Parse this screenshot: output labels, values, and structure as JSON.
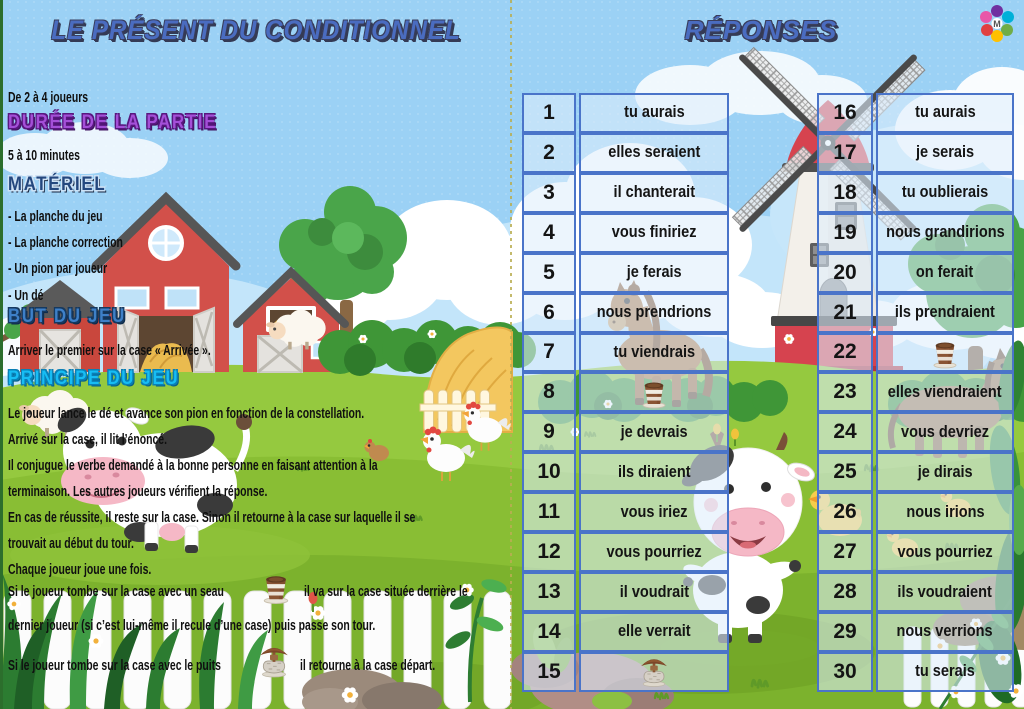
{
  "titles": {
    "left": "LE PRÉSENT DU CONDITIONNEL",
    "right": "RÉPONSES"
  },
  "colors": {
    "title_blue": "#4a6cc0",
    "heading_purple": "#a44fd8",
    "heading_navy": "#24477e",
    "heading_blue": "#3e80c8",
    "heading_cyan": "#17bdf4",
    "table_border": "#4a74c9",
    "sky": "#9bd1f5",
    "grass": "#8cc63e"
  },
  "icons": {
    "bucket": "bucket-icon",
    "well": "well-icon",
    "logo": "brand-logo"
  },
  "instructions": {
    "players": "De 2 à 4 joueurs",
    "duration_heading": "DURÉE DE LA PARTIE",
    "duration": "5 à 10 minutes",
    "material_heading": "MATÉRIEL",
    "materials": [
      "- La planche du jeu",
      "- La planche correction",
      "- Un pion par joueur",
      "- Un dé"
    ],
    "goal_heading": "BUT DU JEU",
    "goal": "Arriver le premier sur la case « Arrivée ».",
    "principle_heading": "PRINCIPE DU JEU",
    "principle_lines": [
      "Le joueur lance le dé et avance son pion en fonction de la constellation.",
      "Arrivé sur la case, il lit l’énoncé.",
      "Il conjugue le verbe demandé à la bonne personne en faisant attention à la",
      "terminaison. Les autres joueurs vérifient la réponse.",
      "En cas de réussite, il reste sur la case. Sinon il retourne à la case sur laquelle il se",
      "trouvait au début du tour.",
      "Chaque joueur joue une fois."
    ],
    "bucket_rule": {
      "before": "Si le joueur tombe sur la case avec un seau",
      "after": "il va sur la case située derrière le",
      "line2": "dernier joueur (si c’est lui-même il recule d’une case) puis passe son tour."
    },
    "well_rule": {
      "before": "Si le joueur tombe sur la case avec le puits",
      "after": "il retourne à la case départ."
    }
  },
  "answers": {
    "left": [
      {
        "n": "1",
        "text": "tu aurais"
      },
      {
        "n": "2",
        "text": "elles seraient"
      },
      {
        "n": "3",
        "text": "il chanterait"
      },
      {
        "n": "4",
        "text": "vous finiriez"
      },
      {
        "n": "5",
        "text": "je ferais"
      },
      {
        "n": "6",
        "text": "nous prendrions"
      },
      {
        "n": "7",
        "text": "tu viendrais"
      },
      {
        "n": "8",
        "text": "",
        "icon": "bucket"
      },
      {
        "n": "9",
        "text": "je devrais"
      },
      {
        "n": "10",
        "text": "ils diraient"
      },
      {
        "n": "11",
        "text": "vous iriez"
      },
      {
        "n": "12",
        "text": "vous pourriez"
      },
      {
        "n": "13",
        "text": "il voudrait"
      },
      {
        "n": "14",
        "text": "elle verrait"
      },
      {
        "n": "15",
        "text": "",
        "icon": "well"
      }
    ],
    "right": [
      {
        "n": "16",
        "text": "tu aurais"
      },
      {
        "n": "17",
        "text": "je serais"
      },
      {
        "n": "18",
        "text": "tu oublierais"
      },
      {
        "n": "19",
        "text": "nous grandirions"
      },
      {
        "n": "20",
        "text": "on ferait"
      },
      {
        "n": "21",
        "text": "ils prendraient"
      },
      {
        "n": "22",
        "text": "",
        "icon": "bucket"
      },
      {
        "n": "23",
        "text": "elles viendraient"
      },
      {
        "n": "24",
        "text": "vous devriez"
      },
      {
        "n": "25",
        "text": "je dirais"
      },
      {
        "n": "26",
        "text": "nous irions"
      },
      {
        "n": "27",
        "text": "vous pourriez"
      },
      {
        "n": "28",
        "text": "ils voudraient"
      },
      {
        "n": "29",
        "text": "nous verrions"
      },
      {
        "n": "30",
        "text": "tu serais"
      }
    ]
  }
}
